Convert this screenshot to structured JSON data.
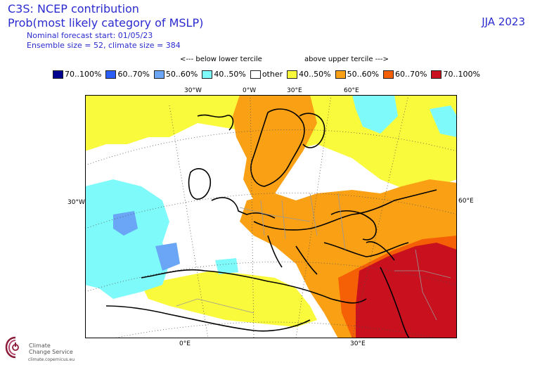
{
  "header": {
    "title": "C3S: NCEP contribution",
    "subtitle": "Prob(most likely category of MSLP)",
    "forecast_start": "Nominal forecast start: 01/05/23",
    "ensemble": "Ensemble size = 52, climate size = 384",
    "season": "JJA 2023"
  },
  "tercile": {
    "below": "<--- below lower tercile",
    "above": "above upper tercile --->"
  },
  "legend": [
    {
      "label": "70..100%",
      "color": "#00008f"
    },
    {
      "label": "60..70%",
      "color": "#2a5ef5"
    },
    {
      "label": "50..60%",
      "color": "#6aa6f5"
    },
    {
      "label": "40..50%",
      "color": "#7ffafa"
    },
    {
      "label": "other",
      "color": "#ffffff"
    },
    {
      "label": "40..50%",
      "color": "#fafa3c"
    },
    {
      "label": "50..60%",
      "color": "#faa015"
    },
    {
      "label": "60..70%",
      "color": "#f55f05"
    },
    {
      "label": "70..100%",
      "color": "#c8101e"
    }
  ],
  "grid_labels": {
    "top": [
      "30°W",
      "0°W",
      "30°E",
      "60°E"
    ],
    "left": "30°W",
    "right": "60°E",
    "bottom": [
      "0°E",
      "30°E"
    ]
  },
  "logo": {
    "line1": "Climate",
    "line2": "Change Service",
    "url": "climate.copernicus.eu"
  }
}
